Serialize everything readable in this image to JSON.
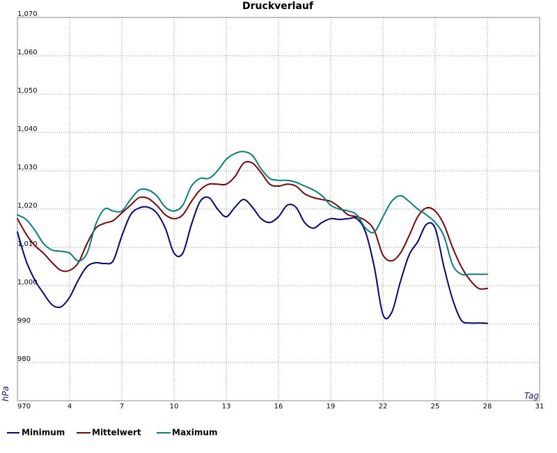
{
  "chart_data": {
    "type": "line",
    "title": "Druckverlauf",
    "xlabel": "Tag",
    "ylabel": "hPa",
    "xlim": [
      1,
      31
    ],
    "ylim": [
      970,
      1070
    ],
    "grid": true,
    "legend_position": "bottom-left",
    "x_ticks": [
      "4",
      "7",
      "10",
      "13",
      "16",
      "19",
      "22",
      "25",
      "28",
      "31"
    ],
    "x_tick_values": [
      4,
      7,
      10,
      13,
      16,
      19,
      22,
      25,
      28,
      31
    ],
    "y_ticks": [
      "970",
      "980",
      "990",
      "1,000",
      "1,010",
      "1,020",
      "1,030",
      "1,040",
      "1,050",
      "1,060",
      "1,070"
    ],
    "y_tick_values": [
      970,
      980,
      990,
      1000,
      1010,
      1020,
      1030,
      1040,
      1050,
      1060,
      1070
    ],
    "x": [
      1,
      1.5,
      2,
      2.5,
      3,
      3.5,
      4,
      4.5,
      5,
      5.5,
      6,
      6.5,
      7,
      7.5,
      8,
      8.5,
      9,
      9.5,
      10,
      10.5,
      11,
      11.5,
      12,
      12.5,
      13,
      13.5,
      14,
      14.5,
      15,
      15.5,
      16,
      16.5,
      17,
      17.5,
      18,
      18.5,
      19,
      19.5,
      20,
      20.5,
      21,
      21.5,
      22,
      22.5,
      23,
      23.5,
      24,
      24.5,
      25,
      25.5,
      26,
      26.5,
      27,
      27.5,
      28
    ],
    "series": [
      {
        "name": "Minimum",
        "color": "#000080",
        "values": [
          1014.0,
          1006.5,
          1001.5,
          998.0,
          995.0,
          994.5,
          997.0,
          1001.5,
          1005.0,
          1006.0,
          1005.8,
          1006.5,
          1013.0,
          1018.5,
          1020.3,
          1020.5,
          1019.0,
          1015.0,
          1008.5,
          1008.5,
          1016.0,
          1022.0,
          1023.0,
          1020.0,
          1018.0,
          1020.5,
          1022.5,
          1020.5,
          1017.5,
          1016.5,
          1018.0,
          1021.0,
          1020.5,
          1016.5,
          1015.0,
          1016.5,
          1017.5,
          1017.3,
          1017.5,
          1017.5,
          1014.0,
          1005.0,
          992.5,
          993.0,
          1001.0,
          1008.0,
          1011.5,
          1016.0,
          1015.0,
          1005.0,
          996.5,
          991.0,
          990.3,
          990.3,
          990.2
        ],
        "legend_label": "Minimum"
      },
      {
        "name": "Mittelwert",
        "color": "#800000",
        "values": [
          1017.5,
          1013.5,
          1010.5,
          1008.5,
          1006.0,
          1004.0,
          1004.0,
          1006.0,
          1011.0,
          1015.0,
          1016.3,
          1017.0,
          1019.0,
          1021.0,
          1023.0,
          1022.8,
          1021.0,
          1018.5,
          1017.5,
          1018.5,
          1022.0,
          1025.0,
          1026.5,
          1026.5,
          1026.5,
          1028.5,
          1032.0,
          1032.0,
          1029.5,
          1026.5,
          1026.0,
          1026.5,
          1026.0,
          1024.0,
          1023.0,
          1022.5,
          1022.0,
          1020.5,
          1018.5,
          1018.0,
          1017.0,
          1014.5,
          1008.0,
          1006.5,
          1008.5,
          1013.0,
          1018.0,
          1020.3,
          1019.5,
          1016.0,
          1010.0,
          1005.0,
          1001.5,
          999.3,
          999.3
        ],
        "legend_label": "Mittelwert"
      },
      {
        "name": "Maximum",
        "color": "#008080",
        "values": [
          1018.5,
          1017.3,
          1014.5,
          1011.0,
          1009.3,
          1009.0,
          1008.5,
          1006.5,
          1008.5,
          1016.0,
          1020.0,
          1019.5,
          1019.5,
          1022.5,
          1025.0,
          1025.0,
          1023.5,
          1020.5,
          1019.5,
          1021.0,
          1026.0,
          1028.0,
          1028.0,
          1030.0,
          1033.0,
          1034.5,
          1035.0,
          1034.0,
          1030.5,
          1028.0,
          1027.5,
          1027.5,
          1027.0,
          1026.0,
          1025.0,
          1023.5,
          1021.0,
          1020.0,
          1019.5,
          1018.5,
          1015.0,
          1014.0,
          1018.0,
          1022.0,
          1023.5,
          1022.0,
          1020.0,
          1018.5,
          1016.5,
          1013.0,
          1005.5,
          1003.0,
          1003.0,
          1003.0,
          1003.0
        ],
        "legend_label": "Maximum"
      }
    ]
  }
}
